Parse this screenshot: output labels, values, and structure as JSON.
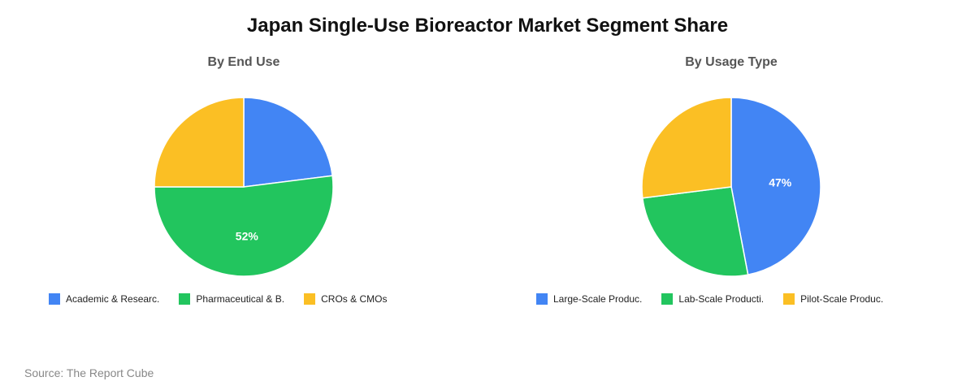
{
  "title": "Japan Single-Use Bioreactor Market Segment Share",
  "source": "Source: The Report Cube",
  "colors": {
    "blue": "#4285F4",
    "green": "#22C55E",
    "yellow": "#FBBF24"
  },
  "chart_data": [
    {
      "type": "pie",
      "title": "By End Use",
      "categories": [
        "Academic & Researc.",
        "Pharmaceutical & B.",
        "CROs & CMOs"
      ],
      "values": [
        23,
        52,
        25
      ],
      "colors": [
        "#4285F4",
        "#22C55E",
        "#FBBF24"
      ],
      "data_labels": [
        "",
        "52%",
        ""
      ],
      "legend": "bottom"
    },
    {
      "type": "pie",
      "title": "By Usage Type",
      "categories": [
        "Large-Scale Produc.",
        "Lab-Scale Producti.",
        "Pilot-Scale Produc."
      ],
      "values": [
        47,
        26,
        27
      ],
      "colors": [
        "#4285F4",
        "#22C55E",
        "#FBBF24"
      ],
      "data_labels": [
        "47%",
        "",
        ""
      ],
      "legend": "bottom"
    }
  ]
}
